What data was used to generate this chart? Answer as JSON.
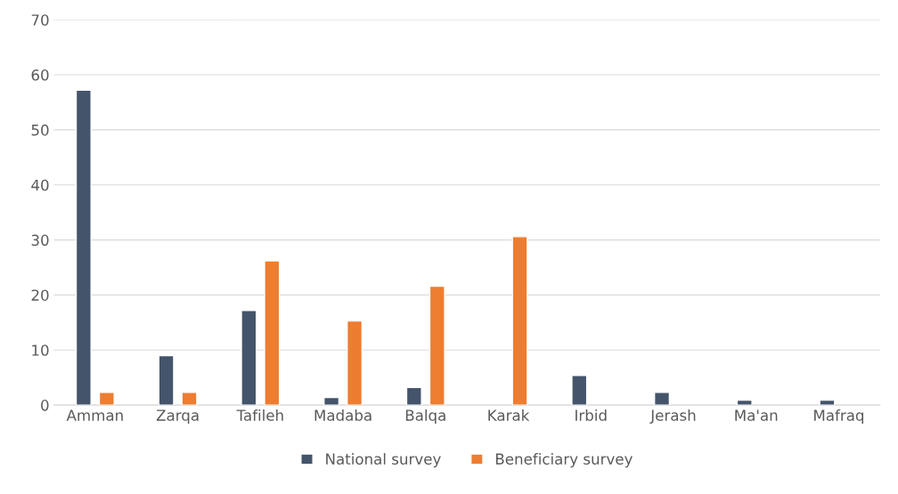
{
  "chart_data": {
    "type": "bar",
    "categories": [
      "Amman",
      "Zarqa",
      "Tafileh",
      "Madaba",
      "Balqa",
      "Karak",
      "Irbid",
      "Jerash",
      "Ma'an",
      "Mafraq"
    ],
    "series": [
      {
        "name": "National survey",
        "color": "#44546a",
        "values": [
          57.2,
          9.0,
          17.2,
          1.4,
          3.2,
          null,
          5.4,
          2.3,
          0.9,
          0.9
        ]
      },
      {
        "name": "Beneficiary survey",
        "color": "#ed7d31",
        "values": [
          2.3,
          2.3,
          26.2,
          15.3,
          21.6,
          30.6,
          null,
          null,
          null,
          null
        ]
      }
    ],
    "ylim": [
      0,
      70
    ],
    "yticks": [
      0,
      10,
      20,
      30,
      40,
      50,
      60,
      70
    ],
    "grid": "y",
    "legend": "bottom"
  }
}
